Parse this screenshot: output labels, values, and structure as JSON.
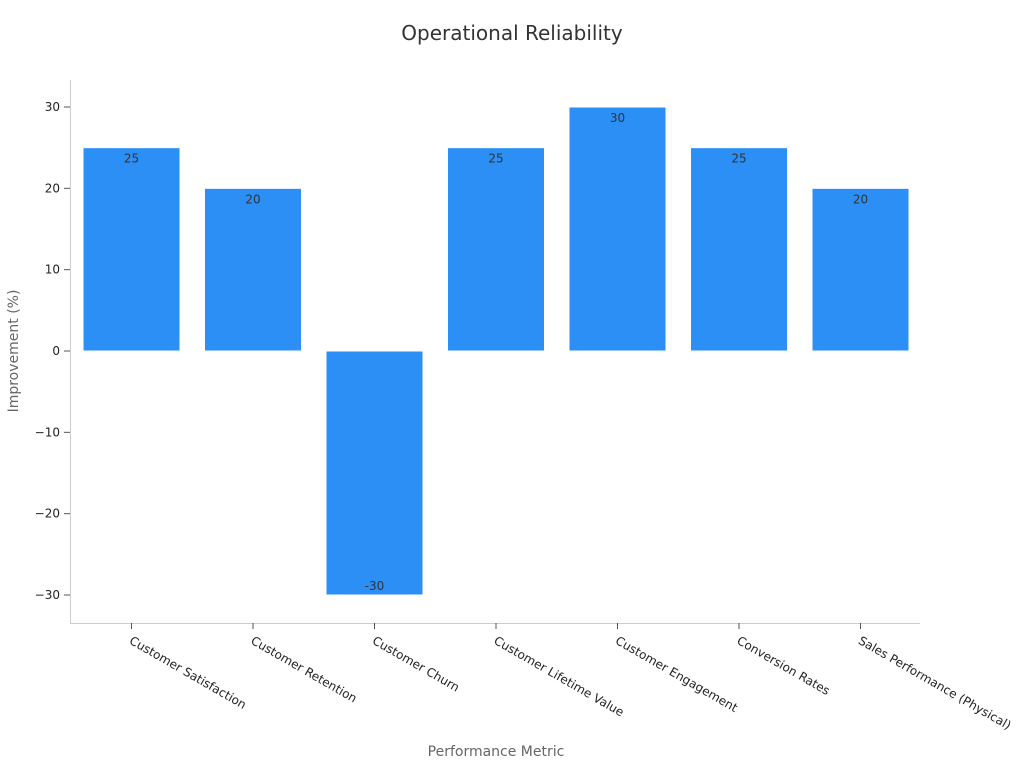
{
  "chart_data": {
    "type": "bar",
    "title": "Operational Reliability",
    "xlabel": "Performance Metric",
    "ylabel": "Improvement (%)",
    "categories": [
      "Customer Satisfaction",
      "Customer Retention",
      "Customer Churn",
      "Customer Lifetime Value",
      "Customer Engagement",
      "Conversion Rates",
      "Sales Performance (Physical)"
    ],
    "values": [
      25,
      20,
      -30,
      25,
      30,
      25,
      20
    ],
    "data_labels": [
      "25",
      "20",
      "-30",
      "25",
      "30",
      "25",
      "20"
    ],
    "yticks": [
      30,
      20,
      10,
      0,
      -10,
      -20,
      -30
    ],
    "ytick_labels": [
      "30",
      "20",
      "10",
      "0",
      "−10",
      "−20",
      "−30"
    ],
    "ylim": [
      -33.3,
      33.3
    ],
    "grid": false,
    "bar_color": "#2b8ff5"
  }
}
